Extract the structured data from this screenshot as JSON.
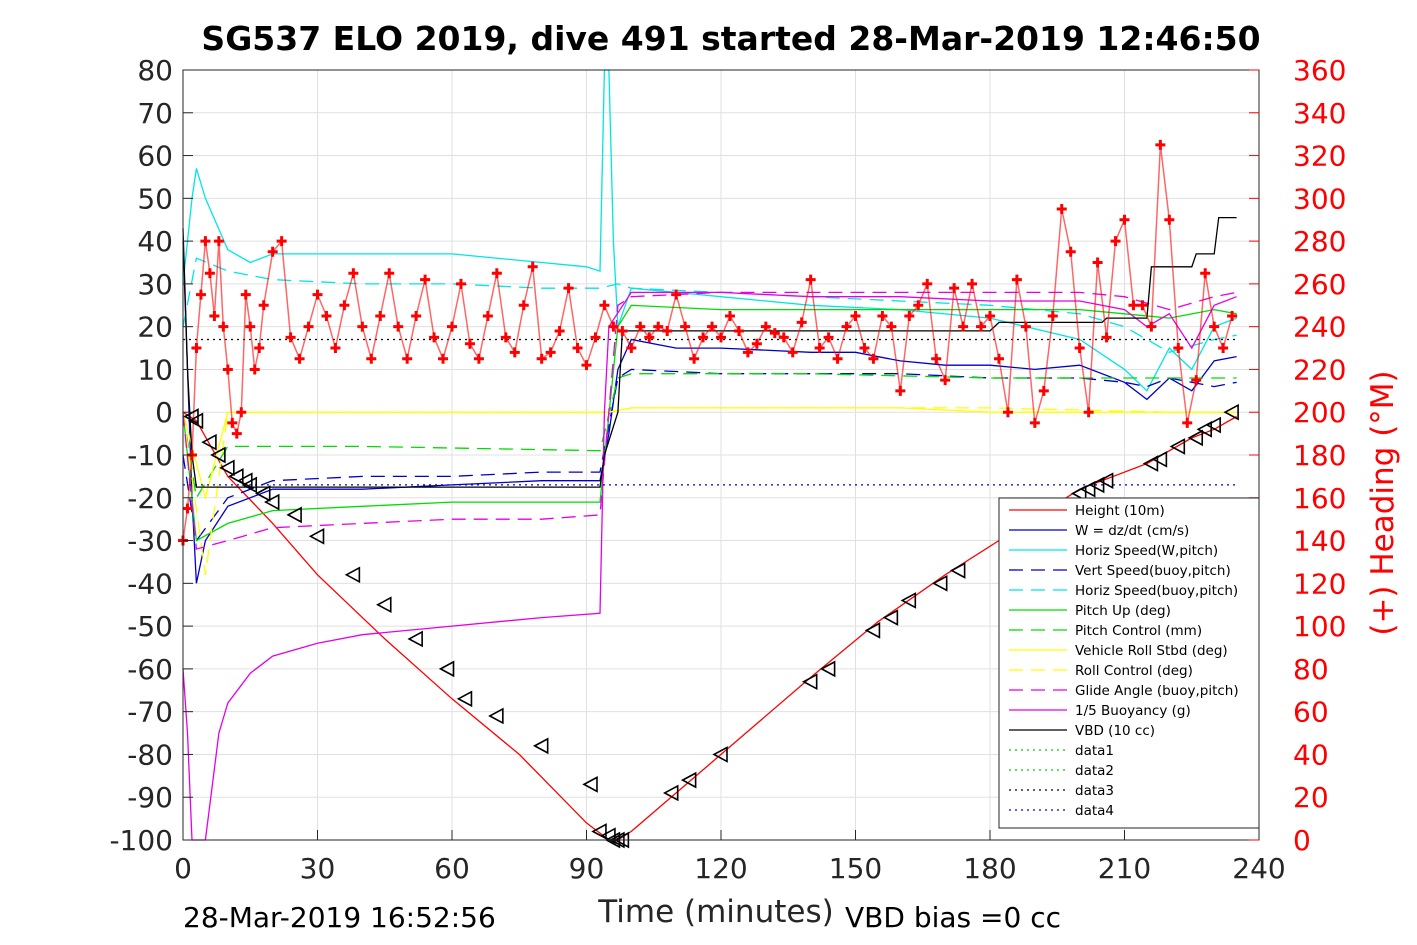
{
  "chart_data": {
    "type": "line",
    "title": "SG537 ELO 2019, dive 491 started 28-Mar-2019 12:46:50",
    "xlabel": "Time (minutes)",
    "ylabel_right": "(+) Heading (°M)",
    "xlim": [
      0,
      240
    ],
    "ylim": [
      -100,
      80
    ],
    "ylim_right": [
      0,
      360
    ],
    "x_ticks": [
      "0",
      "30",
      "60",
      "90",
      "120",
      "150",
      "180",
      "210",
      "240"
    ],
    "y_ticks": [
      "-100",
      "-90",
      "-80",
      "-70",
      "-60",
      "-50",
      "-40",
      "-30",
      "-20",
      "-10",
      "0",
      "10",
      "20",
      "30",
      "40",
      "50",
      "60",
      "70",
      "80"
    ],
    "y_ticks_right": [
      "0",
      "20",
      "40",
      "60",
      "80",
      "100",
      "120",
      "140",
      "160",
      "180",
      "200",
      "220",
      "240",
      "260",
      "280",
      "300",
      "320",
      "340",
      "360"
    ],
    "grid": true,
    "legend_position": "lower-right",
    "footer_left": "28-Mar-2019 16:52:56",
    "footer_right": "VBD bias =0 cc",
    "series": [
      {
        "name": "Height (10m)",
        "color": "#ff0000",
        "style": "solid",
        "x": [
          0,
          3,
          10,
          20,
          30,
          45,
          60,
          75,
          90,
          95,
          97,
          100,
          110,
          120,
          140,
          155,
          170,
          185,
          200,
          215,
          225,
          230,
          235
        ],
        "y": [
          0,
          -2,
          -15,
          -26,
          -38,
          -53,
          -67,
          -80,
          -96,
          -100,
          -100,
          -98,
          -89,
          -80,
          -62,
          -49,
          -38,
          -28,
          -18,
          -12,
          -6,
          -4,
          -1
        ]
      },
      {
        "name": "W = dz/dt (cm/s)",
        "color": "#0000cc",
        "style": "solid",
        "x": [
          0,
          1,
          2,
          3,
          5,
          10,
          20,
          40,
          60,
          80,
          93,
          95,
          97,
          100,
          110,
          120,
          140,
          150,
          160,
          170,
          180,
          190,
          200,
          210,
          215,
          220,
          225,
          230,
          235
        ],
        "y": [
          40,
          10,
          -20,
          -40,
          -30,
          -22,
          -18,
          -18,
          -17,
          -16,
          -16,
          -5,
          10,
          17,
          15,
          15,
          14,
          14,
          12,
          11,
          11,
          10,
          11,
          7,
          3,
          8,
          5,
          12,
          13
        ]
      },
      {
        "name": "Horiz Speed(W,pitch)",
        "color": "#00e5e5",
        "style": "solid",
        "x": [
          0,
          1,
          2,
          3,
          5,
          10,
          15,
          20,
          40,
          60,
          80,
          90,
          93,
          94,
          95,
          96,
          97,
          100,
          110,
          120,
          140,
          160,
          180,
          200,
          210,
          215,
          220,
          225,
          230,
          235
        ],
        "y": [
          30,
          40,
          50,
          57,
          50,
          38,
          35,
          37,
          37,
          37,
          35,
          34,
          33,
          80,
          80,
          40,
          20,
          29,
          28,
          27,
          25,
          24,
          22,
          17,
          10,
          5,
          15,
          10,
          20,
          22
        ]
      },
      {
        "name": "Vert Speed(buoy,pitch)",
        "color": "#0000cc",
        "style": "dashed",
        "x": [
          0,
          3,
          10,
          20,
          40,
          60,
          80,
          93,
          97,
          100,
          120,
          140,
          160,
          180,
          200,
          210,
          215,
          220,
          230,
          235
        ],
        "y": [
          -10,
          -30,
          -20,
          -16,
          -15,
          -15,
          -14,
          -14,
          8,
          10,
          9,
          9,
          9,
          8,
          8,
          7,
          6,
          8,
          6,
          7
        ]
      },
      {
        "name": "Horiz Speed(buoy,pitch)",
        "color": "#00e5e5",
        "style": "dashed",
        "x": [
          0,
          3,
          10,
          20,
          40,
          60,
          80,
          93,
          97,
          100,
          120,
          140,
          160,
          180,
          200,
          210,
          220,
          230,
          235
        ],
        "y": [
          20,
          36,
          33,
          31,
          30,
          30,
          29,
          29,
          30,
          29,
          28,
          27,
          26,
          25,
          23,
          20,
          14,
          17,
          18
        ]
      },
      {
        "name": "Pitch Up (deg)",
        "color": "#00dd00",
        "style": "solid",
        "x": [
          0,
          3,
          10,
          20,
          40,
          60,
          80,
          93,
          97,
          100,
          120,
          140,
          160,
          180,
          200,
          210,
          220,
          230,
          235
        ],
        "y": [
          0,
          -30,
          -26,
          -23,
          -22,
          -21,
          -21,
          -21,
          20,
          25,
          24,
          24,
          24,
          24,
          24,
          23,
          22,
          24,
          23
        ]
      },
      {
        "name": "Pitch Control (mm)",
        "color": "#00dd00",
        "style": "dashed",
        "x": [
          0,
          3,
          10,
          40,
          93,
          97,
          100,
          140,
          180,
          200,
          220,
          235
        ],
        "y": [
          0,
          -20,
          -8,
          -8,
          -9,
          8,
          9,
          9,
          8,
          8,
          8,
          8
        ]
      },
      {
        "name": "Vehicle Roll Stbd (deg)",
        "color": "#ffff00",
        "style": "solid",
        "x": [
          0,
          5,
          10,
          20,
          40,
          60,
          80,
          90,
          95,
          100,
          120,
          140,
          160,
          180,
          200,
          220,
          235
        ],
        "y": [
          0,
          -20,
          0,
          0,
          0,
          0,
          0,
          0,
          0,
          1,
          1,
          1,
          1,
          0,
          0,
          0,
          0
        ]
      },
      {
        "name": "Roll Control (deg)",
        "color": "#ffff00",
        "style": "dashed",
        "x": [
          0,
          5,
          10,
          40,
          80,
          95,
          100,
          140,
          180,
          220,
          235
        ],
        "y": [
          0,
          -38,
          0,
          0,
          0,
          0,
          1,
          1,
          1,
          0,
          0
        ]
      },
      {
        "name": "Glide Angle (buoy,pitch)",
        "color": "#e600e6",
        "style": "dashed",
        "x": [
          0,
          3,
          10,
          20,
          40,
          60,
          80,
          93,
          97,
          100,
          120,
          140,
          160,
          180,
          200,
          210,
          220,
          230,
          235
        ],
        "y": [
          0,
          -32,
          -30,
          -27,
          -26,
          -25,
          -25,
          -24,
          25,
          27,
          28,
          28,
          28,
          28,
          28,
          27,
          24,
          27,
          28
        ]
      },
      {
        "name": "1/5 Buoyancy (g)",
        "color": "#e600e6",
        "style": "solid",
        "x": [
          0,
          1,
          2,
          3,
          5,
          8,
          10,
          15,
          20,
          30,
          40,
          60,
          80,
          93,
          94,
          95,
          100,
          120,
          140,
          160,
          180,
          200,
          210,
          215,
          220,
          225,
          230,
          235
        ],
        "y": [
          -60,
          -75,
          -100,
          -100,
          -100,
          -75,
          -68,
          -61,
          -57,
          -54,
          -52,
          -50,
          -48,
          -47,
          0,
          20,
          28,
          28,
          27,
          27,
          26,
          26,
          24,
          20,
          23,
          15,
          25,
          27
        ]
      },
      {
        "name": "VBD (10 cc)",
        "color": "#000000",
        "style": "solid",
        "x": [
          0,
          1,
          2,
          3,
          10,
          40,
          80,
          93,
          94,
          97,
          98,
          100,
          180,
          182,
          205,
          206,
          215,
          216,
          220,
          225,
          226,
          230,
          231,
          235
        ],
        "y": [
          43,
          10,
          -10,
          -17.5,
          -17.5,
          -17.5,
          -17.5,
          -17.5,
          -10,
          0,
          19,
          19,
          19,
          21,
          21,
          22,
          22,
          34,
          34,
          34,
          37,
          37,
          45.5,
          45.5
        ]
      },
      {
        "name": "data1",
        "color": "#00cc00",
        "style": "dotted",
        "x": [],
        "y": []
      },
      {
        "name": "data2",
        "color": "#00cc00",
        "style": "dotted",
        "x": [],
        "y": []
      },
      {
        "name": "data3",
        "color": "#000000",
        "style": "dotted",
        "x": [
          0,
          235
        ],
        "y": [
          17,
          17
        ]
      },
      {
        "name": "data4",
        "color": "#0000cc",
        "style": "dotted",
        "x": [
          0,
          235
        ],
        "y": [
          -17,
          -17
        ]
      }
    ],
    "heading": {
      "axis": "right",
      "color": "#ff0000",
      "marker": "+",
      "x": [
        0,
        1,
        2,
        3,
        4,
        5,
        6,
        7,
        8,
        9,
        10,
        11,
        12,
        13,
        14,
        15,
        16,
        17,
        18,
        20,
        22,
        24,
        26,
        28,
        30,
        32,
        34,
        36,
        38,
        40,
        42,
        44,
        46,
        48,
        50,
        52,
        54,
        56,
        58,
        60,
        62,
        64,
        66,
        68,
        70,
        72,
        74,
        76,
        78,
        80,
        82,
        84,
        86,
        88,
        90,
        92,
        94,
        96,
        98,
        100,
        102,
        104,
        106,
        108,
        110,
        112,
        114,
        116,
        118,
        120,
        122,
        124,
        126,
        128,
        130,
        132,
        134,
        136,
        138,
        140,
        142,
        144,
        146,
        148,
        150,
        152,
        154,
        156,
        158,
        160,
        162,
        164,
        166,
        168,
        170,
        172,
        174,
        176,
        178,
        180,
        182,
        184,
        186,
        188,
        190,
        192,
        194,
        196,
        198,
        200,
        202,
        204,
        206,
        208,
        210,
        212,
        214,
        216,
        218,
        220,
        222,
        224,
        226,
        228,
        230,
        232,
        234
      ],
      "y": [
        140,
        155,
        180,
        230,
        255,
        280,
        265,
        245,
        280,
        240,
        220,
        195,
        190,
        200,
        255,
        240,
        220,
        230,
        250,
        275,
        280,
        235,
        225,
        240,
        255,
        245,
        230,
        250,
        265,
        240,
        225,
        245,
        265,
        240,
        225,
        245,
        262,
        235,
        225,
        240,
        260,
        232,
        225,
        245,
        265,
        235,
        228,
        250,
        268,
        225,
        228,
        238,
        258,
        230,
        222,
        235,
        250,
        240,
        238,
        230,
        240,
        235,
        240,
        238,
        255,
        240,
        225,
        235,
        240,
        235,
        245,
        238,
        228,
        232,
        240,
        237,
        235,
        228,
        242,
        262,
        230,
        235,
        225,
        240,
        245,
        230,
        225,
        245,
        240,
        210,
        245,
        250,
        260,
        225,
        215,
        258,
        240,
        260,
        240,
        245,
        225,
        200,
        262,
        240,
        195,
        210,
        245,
        295,
        275,
        230,
        200,
        270,
        235,
        280,
        290,
        250,
        250,
        240,
        325,
        290,
        230,
        195,
        215,
        265,
        240,
        230,
        245
      ]
    },
    "dive_markers": {
      "marker": "triangle-left",
      "x": [
        2,
        3,
        6,
        8,
        10,
        12,
        14,
        15,
        18,
        20,
        25,
        30,
        38,
        45,
        52,
        59,
        63,
        70,
        80,
        91,
        93,
        95,
        96,
        97,
        98,
        109,
        113,
        120,
        140,
        144,
        154,
        158,
        162,
        169,
        173,
        200,
        202,
        204,
        206,
        216,
        218,
        222,
        226,
        228,
        230,
        234
      ],
      "y": [
        -1,
        -2,
        -7,
        -10,
        -13,
        -15,
        -16,
        -17,
        -19,
        -21,
        -24,
        -29,
        -38,
        -45,
        -53,
        -60,
        -67,
        -71,
        -78,
        -87,
        -98,
        -99,
        -100,
        -100,
        -100,
        -89,
        -86,
        -80,
        -63,
        -60,
        -51,
        -48,
        -44,
        -40,
        -37,
        -19,
        -18,
        -17,
        -16,
        -12,
        -11,
        -8,
        -6,
        -4,
        -3,
        0
      ]
    }
  }
}
